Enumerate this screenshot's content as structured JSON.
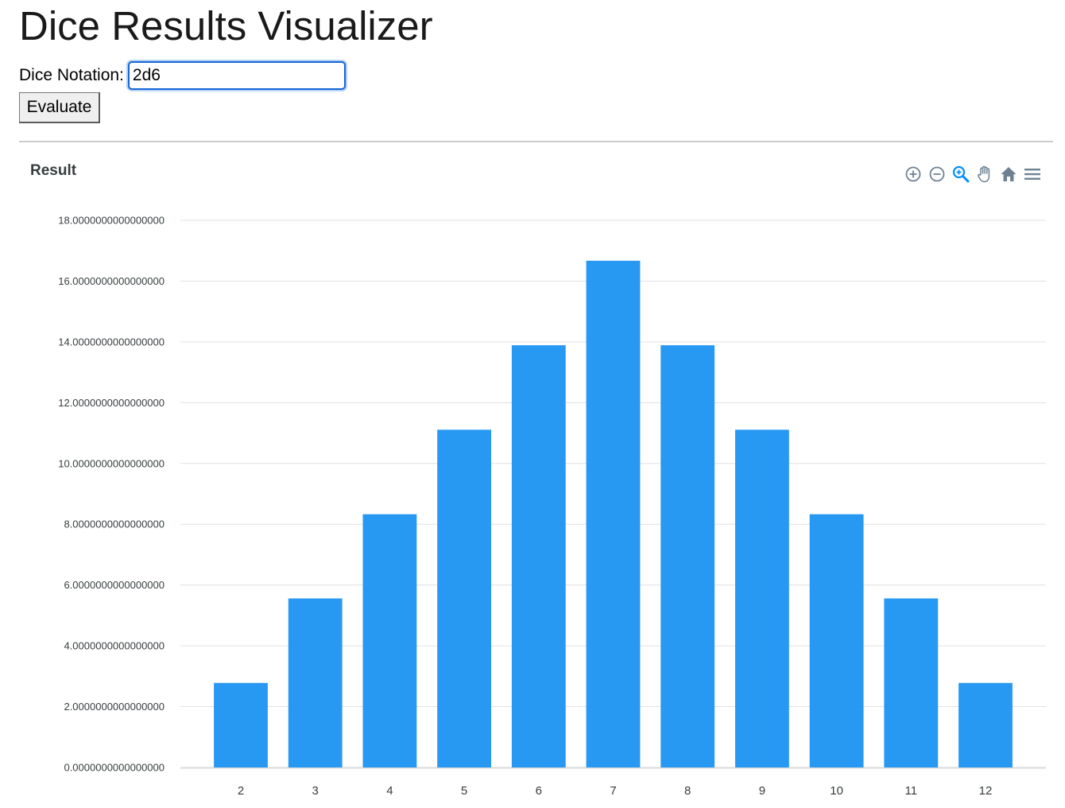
{
  "page": {
    "title": "Dice Results Visualizer"
  },
  "form": {
    "notation_label": "Dice Notation:",
    "notation_value": "2d6",
    "evaluate_label": "Evaluate"
  },
  "toolbar": {
    "icons": [
      "zoom-in-icon",
      "zoom-out-icon",
      "selection-zoom-icon",
      "pan-hand-icon",
      "reset-home-icon",
      "menu-icon"
    ]
  },
  "colors": {
    "bar": "#2196f3",
    "grid": "#e0e0e0",
    "text": "#373d3f",
    "toolbar_icon": "#6e8192",
    "toolbar_active": "#008ffb"
  },
  "chart_data": {
    "type": "bar",
    "title": "Result",
    "categories": [
      "2",
      "3",
      "4",
      "5",
      "6",
      "7",
      "8",
      "9",
      "10",
      "11",
      "12"
    ],
    "values": [
      2.78,
      5.56,
      8.33,
      11.11,
      13.89,
      16.67,
      13.89,
      11.11,
      8.33,
      5.56,
      2.78
    ],
    "ylim": [
      0,
      18
    ],
    "yticks": [
      "0.0000000000000000",
      "2.0000000000000000",
      "4.0000000000000000",
      "6.0000000000000000",
      "8.0000000000000000",
      "10.0000000000000000",
      "12.0000000000000000",
      "14.0000000000000000",
      "16.0000000000000000",
      "18.0000000000000000"
    ],
    "grid": true,
    "legend": "none"
  }
}
